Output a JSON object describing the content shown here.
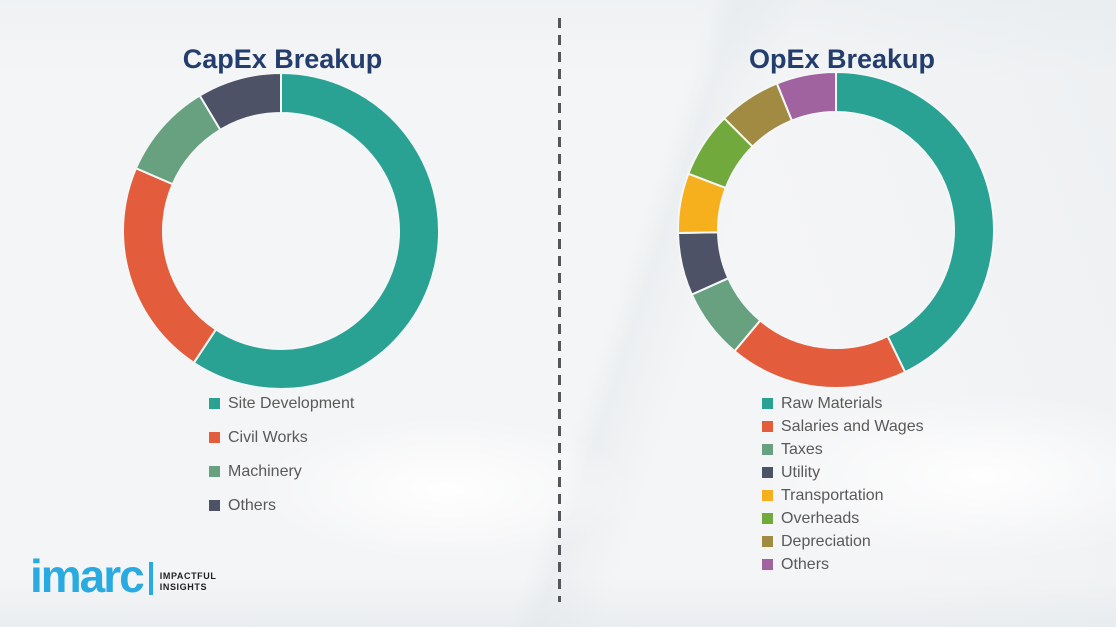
{
  "page": {
    "background_color": "#f4f5f6",
    "divider_color": "#54565a",
    "title_color": "#233d6d",
    "legend_text_color": "#595959"
  },
  "chart_data": [
    {
      "type": "pie",
      "subtype": "donut",
      "title": "CapEx Breakup",
      "categories": [
        "Site Development",
        "Civil Works",
        "Machinery",
        "Others"
      ],
      "values": [
        59.3,
        22.2,
        9.9,
        8.6
      ],
      "colors": [
        "#29a294",
        "#e35d3c",
        "#67a17f",
        "#4d5266"
      ],
      "start_angle_deg": 0,
      "direction": "clockwise",
      "hole_ratio": 0.75,
      "legend_position": "below-chart",
      "data_labels": "none"
    },
    {
      "type": "pie",
      "subtype": "donut",
      "title": "OpEx Breakup",
      "categories": [
        "Raw Materials",
        "Salaries and Wages",
        "Taxes",
        "Utility",
        "Transportation",
        "Overheads",
        "Depreciation",
        "Others"
      ],
      "values": [
        42.8,
        18.3,
        7.2,
        6.4,
        6.1,
        6.7,
        6.4,
        6.1
      ],
      "colors": [
        "#29a294",
        "#e35d3c",
        "#67a17f",
        "#4d5266",
        "#f6b01d",
        "#72a93c",
        "#a18b42",
        "#a0639f"
      ],
      "start_angle_deg": 0,
      "direction": "clockwise",
      "hole_ratio": 0.75,
      "legend_position": "below-chart",
      "data_labels": "none"
    }
  ],
  "logo": {
    "brand": "imarc",
    "tagline_line1": "IMPACTFUL",
    "tagline_line2": "INSIGHTS",
    "brand_color": "#29abe2"
  }
}
